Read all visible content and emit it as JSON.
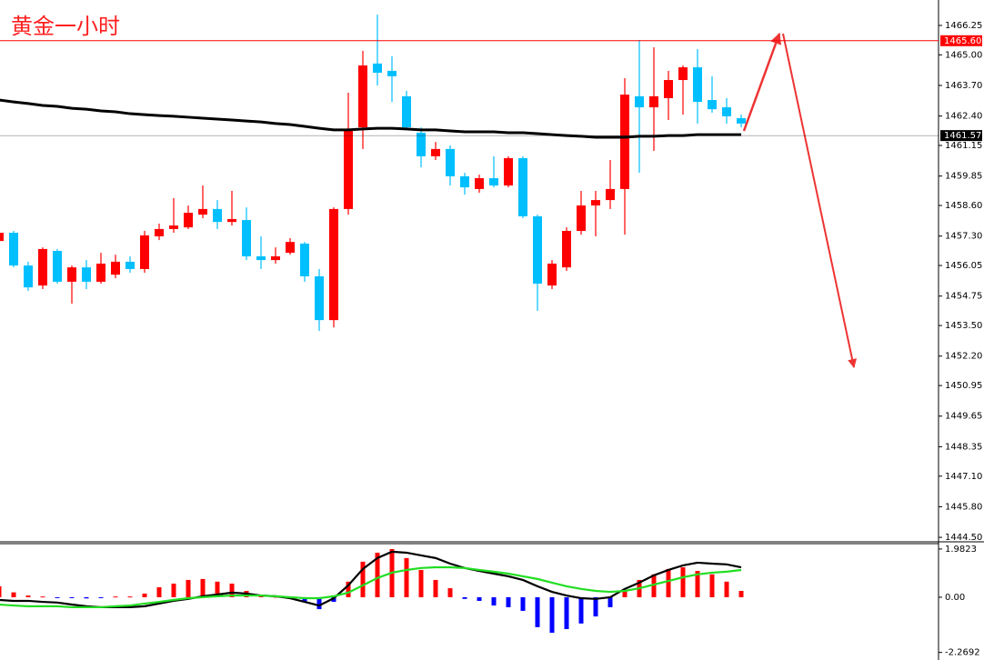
{
  "title": "黄金一小时",
  "chart_data": [
    {
      "type": "candlestick",
      "ylim": [
        1444.31,
        1467.33
      ],
      "yticks": [
        1466.25,
        {
          "value": 1465,
          "label": "1465.00"
        },
        {
          "value": 1463.7,
          "label": "1463.70"
        },
        {
          "value": 1462.4,
          "label": "1462.40"
        },
        1461.15,
        1459.85,
        {
          "value": 1458.6,
          "label": "1458.60"
        },
        {
          "value": 1457.3,
          "label": "1457.30"
        },
        1456.05,
        1454.75,
        {
          "value": 1453.5,
          "label": "1453.50"
        },
        {
          "value": 1452.2,
          "label": "1452.20"
        },
        1450.95,
        1449.65,
        1448.35,
        {
          "value": 1447.1,
          "label": "1447.10"
        },
        {
          "value": 1445.8,
          "label": "1445.80"
        },
        {
          "value": 1444.5,
          "label": "1444.50"
        }
      ],
      "up_color": "#ff0000",
      "down_color": "#00bfff",
      "open": [
        1457.09,
        1457.44,
        1456.05,
        1455.2,
        1456.67,
        1455.36,
        1455.97,
        1455.36,
        1455.66,
        1456.21,
        1455.9,
        1457.29,
        1457.6,
        1457.67,
        1458.21,
        1458.45,
        1457.9,
        1457.98,
        1456.44,
        1456.28,
        1456.59,
        1456.98,
        1455.59,
        1453.73,
        1458.45,
        1461.92,
        1464.63,
        1464.32,
        1463.24,
        1461.69,
        1460.69,
        1461.0,
        1459.84,
        1459.3,
        1459.76,
        1459.45,
        1460.61,
        1458.14,
        1455.2,
        1455.97,
        1457.52,
        1458.6,
        1458.83,
        1459.3,
        1463.24,
        1462.77,
        1463.16,
        1463.93,
        1464.47,
        1463.08,
        1462.77,
        1462.31
      ],
      "high": [
        1457.6,
        1457.52,
        1456.21,
        1456.82,
        1456.75,
        1456.05,
        1456.28,
        1456.59,
        1456.51,
        1456.44,
        1457.52,
        1457.83,
        1458.91,
        1458.6,
        1459.45,
        1458.83,
        1459.22,
        1458.52,
        1457.29,
        1456.82,
        1457.21,
        1457.05,
        1455.9,
        1458.52,
        1463.39,
        1465.17,
        1466.71,
        1464.94,
        1463.47,
        1461.92,
        1461.3,
        1461.15,
        1459.99,
        1459.91,
        1460.69,
        1460.69,
        1460.69,
        1458.21,
        1456.28,
        1457.67,
        1459.22,
        1459.22,
        1460.53,
        1464.01,
        1465.63,
        1465.32,
        1464.32,
        1464.55,
        1465.24,
        1464.09,
        1463.16,
        1462.46
      ],
      "low": [
        1456.98,
        1455.97,
        1454.97,
        1455.05,
        1455.28,
        1454.43,
        1455.05,
        1455.28,
        1455.51,
        1455.74,
        1455.74,
        1457.13,
        1457.44,
        1457.6,
        1458.06,
        1457.6,
        1457.75,
        1456.28,
        1455.9,
        1456.13,
        1456.51,
        1455.36,
        1453.27,
        1453.42,
        1458.21,
        1461.0,
        1463.7,
        1463.0,
        1461.85,
        1460.22,
        1460.53,
        1459.45,
        1459.06,
        1459.14,
        1459.37,
        1459.37,
        1458.06,
        1454.12,
        1455.05,
        1455.82,
        1457.36,
        1457.29,
        1458.45,
        1457.36,
        1459.99,
        1460.92,
        1462.23,
        1462.46,
        1462.08,
        1462.54,
        1462.08,
        1461.92
      ],
      "close": [
        1457.44,
        1456.05,
        1455.12,
        1456.75,
        1455.36,
        1455.97,
        1455.36,
        1456.13,
        1456.21,
        1455.9,
        1457.33,
        1457.6,
        1457.75,
        1458.29,
        1458.45,
        1457.9,
        1458.02,
        1456.44,
        1456.28,
        1456.44,
        1457.05,
        1455.59,
        1453.73,
        1458.45,
        1461.77,
        1464.55,
        1464.24,
        1464.09,
        1461.92,
        1460.69,
        1461.0,
        1459.84,
        1459.37,
        1459.76,
        1459.45,
        1460.61,
        1458.14,
        1455.28,
        1456.13,
        1457.52,
        1458.6,
        1458.83,
        1459.3,
        1463.31,
        1462.77,
        1463.24,
        1463.93,
        1464.47,
        1463.0,
        1462.69,
        1462.39,
        1462.08
      ],
      "overlay": {
        "color": "#000000",
        "values": [
          1463.08,
          1463.0,
          1462.93,
          1462.85,
          1462.81,
          1462.73,
          1462.69,
          1462.62,
          1462.58,
          1462.5,
          1462.46,
          1462.42,
          1462.39,
          1462.35,
          1462.31,
          1462.27,
          1462.23,
          1462.19,
          1462.15,
          1462.08,
          1462.04,
          1461.96,
          1461.88,
          1461.81,
          1461.81,
          1461.85,
          1461.88,
          1461.88,
          1461.85,
          1461.81,
          1461.81,
          1461.77,
          1461.73,
          1461.73,
          1461.73,
          1461.69,
          1461.69,
          1461.65,
          1461.61,
          1461.57,
          1461.54,
          1461.5,
          1461.5,
          1461.5,
          1461.54,
          1461.54,
          1461.57,
          1461.57,
          1461.61,
          1461.61,
          1461.61,
          1461.61
        ]
      },
      "levels": [
        {
          "value": 1465.6,
          "label": "1465.60",
          "color": "#ff0000"
        },
        {
          "value": 1461.57,
          "color": "#000000"
        }
      ]
    },
    {
      "type": "macd",
      "ylim": [
        -2.58,
        2.24
      ],
      "yticks": [
        1.9823,
        {
          "value": 0,
          "label": "0.00"
        },
        -2.2692
      ],
      "up_color": "#ff0000",
      "down_color": "#0000ff",
      "values": [
        0.45,
        0.2,
        0.07,
        0.03,
        -0.03,
        -0.03,
        -0.05,
        -0.03,
        0.03,
        0.03,
        0.15,
        0.41,
        0.56,
        0.71,
        0.75,
        0.64,
        0.56,
        0.26,
        0.07,
        0.02,
        -0.04,
        -0.19,
        -0.49,
        -0.19,
        0.64,
        1.46,
        1.83,
        1.98,
        1.61,
        1.12,
        0.71,
        0.37,
        -0.07,
        -0.15,
        -0.34,
        -0.41,
        -0.56,
        -1.23,
        -1.46,
        -1.31,
        -1.08,
        -0.79,
        -0.41,
        0.26,
        0.71,
        0.94,
        1.16,
        1.23,
        1.08,
        0.94,
        0.64,
        0.26
      ],
      "lines": [
        {
          "color": "#000000",
          "values": [
            -0.11,
            -0.15,
            -0.15,
            -0.19,
            -0.22,
            -0.3,
            -0.37,
            -0.41,
            -0.41,
            -0.41,
            -0.37,
            -0.26,
            -0.15,
            -0.07,
            0.04,
            0.11,
            0.19,
            0.15,
            0.07,
            0.04,
            -0.04,
            -0.19,
            -0.34,
            -0.04,
            0.49,
            1.16,
            1.61,
            1.87,
            1.83,
            1.72,
            1.61,
            1.38,
            1.2,
            1.08,
            0.97,
            0.86,
            0.71,
            0.45,
            0.22,
            0.07,
            -0.04,
            -0.07,
            0.0,
            0.34,
            0.6,
            0.9,
            1.12,
            1.31,
            1.42,
            1.38,
            1.35,
            1.23
          ]
        },
        {
          "color": "#22dd22",
          "values": [
            -0.3,
            -0.34,
            -0.37,
            -0.37,
            -0.37,
            -0.41,
            -0.41,
            -0.41,
            -0.37,
            -0.34,
            -0.26,
            -0.19,
            -0.11,
            -0.04,
            0.0,
            0.04,
            0.07,
            0.07,
            0.07,
            0.04,
            0.0,
            -0.04,
            -0.04,
            0.04,
            0.19,
            0.49,
            0.79,
            1.01,
            1.12,
            1.2,
            1.23,
            1.23,
            1.2,
            1.12,
            1.05,
            0.97,
            0.86,
            0.75,
            0.6,
            0.45,
            0.34,
            0.26,
            0.22,
            0.26,
            0.37,
            0.52,
            0.67,
            0.82,
            0.94,
            1.01,
            1.05,
            1.12
          ]
        }
      ]
    }
  ]
}
